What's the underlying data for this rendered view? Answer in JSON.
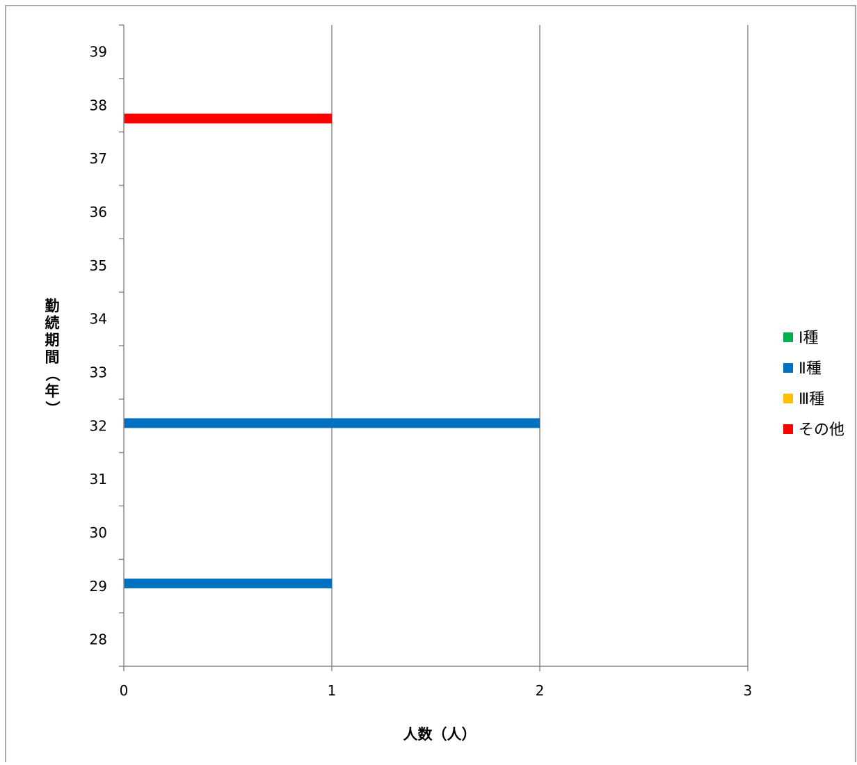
{
  "chart_data": {
    "type": "bar",
    "orientation": "horizontal",
    "xlabel": "人数（人）",
    "ylabel_chars": [
      "勤",
      "続",
      "期",
      "間",
      "（",
      "年",
      "）"
    ],
    "xlim": [
      0,
      3
    ],
    "ylim": [
      27.5,
      39.5
    ],
    "x_ticks": [
      "0",
      "1",
      "2",
      "3"
    ],
    "y_categories": [
      "28",
      "29",
      "30",
      "31",
      "32",
      "33",
      "34",
      "35",
      "36",
      "37",
      "38",
      "39"
    ],
    "grid": "vertical major gridlines",
    "legend_position": "right",
    "series": [
      {
        "name": "Ⅰ種",
        "color": "#00b050",
        "points": []
      },
      {
        "name": "Ⅱ種",
        "color": "#0070c0",
        "points": [
          {
            "y": 29.05,
            "value": 1
          },
          {
            "y": 32.05,
            "value": 2
          }
        ]
      },
      {
        "name": "Ⅲ種",
        "color": "#ffc000",
        "points": []
      },
      {
        "name": "その他",
        "color": "#ff0000",
        "points": [
          {
            "y": 37.75,
            "value": 1
          }
        ]
      }
    ]
  }
}
